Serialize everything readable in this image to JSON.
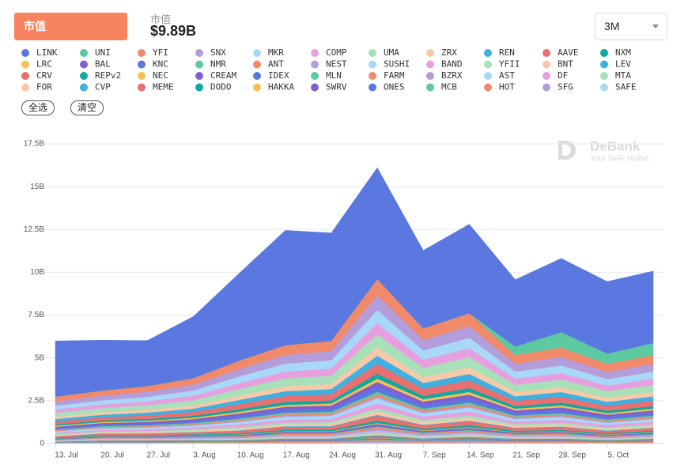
{
  "header": {
    "tab": "市值",
    "metric_label": "市值",
    "metric_value": "$9.89B",
    "range": "3M",
    "select_all": "全选",
    "clear": "清空",
    "watermark": "DeBank",
    "watermark_sub": "Your DeFi Wallet"
  },
  "chart_data": {
    "type": "stacked_area",
    "categories": [
      "13. Jul",
      "20. Jul",
      "27. Jul",
      "3. Aug",
      "10. Aug",
      "17. Aug",
      "24. Aug",
      "31. Aug",
      "7. Sep",
      "14. Sep",
      "21. Sep",
      "28. Sep",
      "5. Oct",
      null
    ],
    "ylim": [
      0,
      17.5
    ],
    "yticks": [
      0,
      {
        "value": 2.5,
        "label": "2.5B"
      },
      {
        "value": 5,
        "label": "5B"
      },
      {
        "value": 7.5,
        "label": "7.5B"
      },
      {
        "value": 10,
        "label": "10B"
      },
      {
        "value": 12.5,
        "label": "12.5B"
      },
      {
        "value": 15,
        "label": "15B"
      },
      {
        "value": 17.5,
        "label": "17.5B"
      }
    ],
    "grid": true,
    "series": [
      {
        "name": "LINK",
        "color": "#5b78e0",
        "values": [
          3.25,
          2.95,
          2.65,
          3.6,
          5.1,
          6.7,
          6.3,
          6.5,
          4.55,
          5.2,
          3.9,
          4.3,
          4.2,
          4.2
        ]
      },
      {
        "name": "UNI",
        "color": "#5cc9a0",
        "values": [
          0,
          0,
          0,
          0,
          0,
          0,
          0,
          0,
          0,
          0,
          0.5,
          0.9,
          0.6,
          0.7
        ]
      },
      {
        "name": "YFI",
        "color": "#f08a6a",
        "values": [
          0.28,
          0.3,
          0.33,
          0.38,
          0.49,
          0.57,
          0.6,
          0.95,
          0.68,
          0.75,
          0.51,
          0.55,
          0.47,
          0.51
        ]
      },
      {
        "name": "SNX",
        "color": "#b39ddb",
        "values": [
          0.25,
          0.27,
          0.3,
          0.34,
          0.44,
          0.51,
          0.54,
          0.86,
          0.61,
          0.68,
          0.46,
          0.5,
          0.42,
          0.46
        ]
      },
      {
        "name": "MKR",
        "color": "#a8d8f8",
        "values": [
          0.22,
          0.24,
          0.26,
          0.3,
          0.39,
          0.46,
          0.48,
          0.76,
          0.54,
          0.6,
          0.41,
          0.44,
          0.38,
          0.41
        ]
      },
      {
        "name": "COMP",
        "color": "#e6a0e0",
        "values": [
          0.2,
          0.21,
          0.23,
          0.27,
          0.34,
          0.4,
          0.42,
          0.67,
          0.48,
          0.53,
          0.36,
          0.39,
          0.33,
          0.36
        ]
      },
      {
        "name": "UMA",
        "color": "#a8e0b8",
        "values": [
          0.22,
          0.24,
          0.26,
          0.3,
          0.39,
          0.46,
          0.48,
          0.76,
          0.54,
          0.6,
          0.41,
          0.44,
          0.38,
          0.41
        ]
      },
      {
        "name": "ZRX",
        "color": "#f8c8a8",
        "values": [
          0.14,
          0.15,
          0.17,
          0.19,
          0.25,
          0.29,
          0.3,
          0.48,
          0.34,
          0.38,
          0.26,
          0.28,
          0.24,
          0.26
        ]
      },
      {
        "name": "REN",
        "color": "#40b0e0",
        "values": [
          0.14,
          0.15,
          0.17,
          0.19,
          0.25,
          0.29,
          0.3,
          0.48,
          0.34,
          0.38,
          0.26,
          0.28,
          0.24,
          0.26
        ]
      },
      {
        "name": "AAVE",
        "color": "#e87070",
        "values": [
          0.17,
          0.18,
          0.2,
          0.23,
          0.29,
          0.34,
          0.36,
          0.57,
          0.41,
          0.45,
          0.31,
          0.33,
          0.28,
          0.31
        ]
      },
      {
        "name": "NXM",
        "color": "#10a8a0",
        "values": [
          0.08,
          0.09,
          0.1,
          0.11,
          0.15,
          0.17,
          0.18,
          0.29,
          0.2,
          0.23,
          0.15,
          0.17,
          0.14,
          0.15
        ]
      },
      {
        "name": "LRC",
        "color": "#f8c050",
        "values": [
          0.06,
          0.06,
          0.07,
          0.08,
          0.1,
          0.11,
          0.12,
          0.19,
          0.14,
          0.15,
          0.1,
          0.11,
          0.09,
          0.1
        ]
      },
      {
        "name": "BAL",
        "color": "#8060d0",
        "values": [
          0.08,
          0.09,
          0.1,
          0.11,
          0.15,
          0.17,
          0.18,
          0.29,
          0.2,
          0.23,
          0.15,
          0.17,
          0.14,
          0.15
        ]
      },
      {
        "name": "KNC",
        "color": "#5b78e0",
        "values": [
          0.08,
          0.09,
          0.1,
          0.11,
          0.15,
          0.17,
          0.18,
          0.29,
          0.2,
          0.23,
          0.15,
          0.17,
          0.14,
          0.15
        ]
      },
      {
        "name": "NMR",
        "color": "#5cc9a0",
        "values": [
          0.04,
          0.05,
          0.05,
          0.06,
          0.07,
          0.09,
          0.09,
          0.14,
          0.1,
          0.11,
          0.08,
          0.08,
          0.07,
          0.08
        ]
      },
      {
        "name": "ANT",
        "color": "#f08a6a",
        "values": [
          0.04,
          0.05,
          0.05,
          0.06,
          0.07,
          0.09,
          0.09,
          0.14,
          0.1,
          0.11,
          0.08,
          0.08,
          0.07,
          0.08
        ]
      },
      {
        "name": "NEST",
        "color": "#b39ddb",
        "values": [
          0.03,
          0.03,
          0.03,
          0.04,
          0.05,
          0.06,
          0.06,
          0.1,
          0.07,
          0.08,
          0.05,
          0.06,
          0.05,
          0.05
        ]
      },
      {
        "name": "SUSHI",
        "color": "#a8d8f8",
        "values": [
          0.08,
          0.09,
          0.1,
          0.11,
          0.15,
          0.17,
          0.18,
          0.29,
          0.2,
          0.23,
          0.15,
          0.17,
          0.14,
          0.15
        ]
      },
      {
        "name": "BAND",
        "color": "#e6a0e0",
        "values": [
          0.08,
          0.09,
          0.1,
          0.11,
          0.15,
          0.17,
          0.18,
          0.29,
          0.2,
          0.23,
          0.15,
          0.17,
          0.14,
          0.15
        ]
      },
      {
        "name": "YFII",
        "color": "#a8e0b8",
        "values": [
          0.06,
          0.06,
          0.07,
          0.08,
          0.1,
          0.11,
          0.12,
          0.19,
          0.14,
          0.15,
          0.1,
          0.11,
          0.09,
          0.1
        ]
      },
      {
        "name": "BNT",
        "color": "#f8c8a8",
        "values": [
          0.06,
          0.06,
          0.07,
          0.08,
          0.1,
          0.11,
          0.12,
          0.19,
          0.14,
          0.15,
          0.1,
          0.11,
          0.09,
          0.1
        ]
      },
      {
        "name": "LEV",
        "color": "#40b0e0",
        "values": [
          0.01,
          0.02,
          0.02,
          0.02,
          0.02,
          0.03,
          0.03,
          0.05,
          0.03,
          0.04,
          0.03,
          0.03,
          0.02,
          0.03
        ]
      },
      {
        "name": "CRV",
        "color": "#e87070",
        "values": [
          0.08,
          0.09,
          0.1,
          0.11,
          0.15,
          0.17,
          0.18,
          0.29,
          0.2,
          0.23,
          0.15,
          0.17,
          0.14,
          0.15
        ]
      },
      {
        "name": "REPv2",
        "color": "#10a8a0",
        "values": [
          0.04,
          0.05,
          0.05,
          0.06,
          0.07,
          0.09,
          0.09,
          0.14,
          0.1,
          0.11,
          0.08,
          0.08,
          0.07,
          0.08
        ]
      },
      {
        "name": "NEC",
        "color": "#f8c050",
        "values": [
          0.01,
          0.02,
          0.02,
          0.02,
          0.02,
          0.03,
          0.03,
          0.05,
          0.03,
          0.04,
          0.03,
          0.03,
          0.02,
          0.03
        ]
      },
      {
        "name": "CREAM",
        "color": "#8060d0",
        "values": [
          0.03,
          0.03,
          0.03,
          0.04,
          0.05,
          0.06,
          0.06,
          0.1,
          0.07,
          0.08,
          0.05,
          0.06,
          0.05,
          0.05
        ]
      },
      {
        "name": "IDEX",
        "color": "#5b78e0",
        "values": [
          0.01,
          0.02,
          0.02,
          0.02,
          0.02,
          0.03,
          0.03,
          0.05,
          0.03,
          0.04,
          0.03,
          0.03,
          0.02,
          0.03
        ]
      },
      {
        "name": "MLN",
        "color": "#5cc9a0",
        "values": [
          0.01,
          0.02,
          0.02,
          0.02,
          0.02,
          0.03,
          0.03,
          0.05,
          0.03,
          0.04,
          0.03,
          0.03,
          0.02,
          0.03
        ]
      },
      {
        "name": "FARM",
        "color": "#f08a6a",
        "values": [
          0.03,
          0.03,
          0.03,
          0.04,
          0.05,
          0.06,
          0.06,
          0.1,
          0.07,
          0.08,
          0.05,
          0.06,
          0.05,
          0.05
        ]
      },
      {
        "name": "BZRX",
        "color": "#b39ddb",
        "values": [
          0.03,
          0.03,
          0.03,
          0.04,
          0.05,
          0.06,
          0.06,
          0.1,
          0.07,
          0.08,
          0.05,
          0.06,
          0.05,
          0.05
        ]
      },
      {
        "name": "AST",
        "color": "#a8d8f8",
        "values": [
          0.01,
          0.02,
          0.02,
          0.02,
          0.02,
          0.03,
          0.03,
          0.05,
          0.03,
          0.04,
          0.03,
          0.03,
          0.02,
          0.03
        ]
      },
      {
        "name": "DF",
        "color": "#e6a0e0",
        "values": [
          0.01,
          0.02,
          0.02,
          0.02,
          0.02,
          0.03,
          0.03,
          0.05,
          0.03,
          0.04,
          0.03,
          0.03,
          0.02,
          0.03
        ]
      },
      {
        "name": "MTA",
        "color": "#a8e0b8",
        "values": [
          0.03,
          0.03,
          0.03,
          0.04,
          0.05,
          0.06,
          0.06,
          0.1,
          0.07,
          0.08,
          0.05,
          0.06,
          0.05,
          0.05
        ]
      },
      {
        "name": "FOR",
        "color": "#f8c8a8",
        "values": [
          0.01,
          0.02,
          0.02,
          0.02,
          0.02,
          0.03,
          0.03,
          0.05,
          0.03,
          0.04,
          0.03,
          0.03,
          0.02,
          0.03
        ]
      },
      {
        "name": "CVP",
        "color": "#40b0e0",
        "values": [
          0.01,
          0.02,
          0.02,
          0.02,
          0.02,
          0.03,
          0.03,
          0.05,
          0.03,
          0.04,
          0.03,
          0.03,
          0.02,
          0.03
        ]
      },
      {
        "name": "MEME",
        "color": "#e87070",
        "values": [
          0.01,
          0.02,
          0.02,
          0.02,
          0.02,
          0.03,
          0.03,
          0.05,
          0.03,
          0.04,
          0.03,
          0.03,
          0.02,
          0.03
        ]
      },
      {
        "name": "DODO",
        "color": "#10a8a0",
        "values": [
          0.01,
          0.02,
          0.02,
          0.02,
          0.02,
          0.03,
          0.03,
          0.05,
          0.03,
          0.04,
          0.03,
          0.03,
          0.02,
          0.03
        ]
      },
      {
        "name": "HAKKA",
        "color": "#f8c050",
        "values": [
          0.01,
          0.01,
          0.01,
          0.01,
          0.01,
          0.02,
          0.02,
          0.03,
          0.02,
          0.02,
          0.02,
          0.02,
          0.01,
          0.02
        ]
      },
      {
        "name": "SWRV",
        "color": "#8060d0",
        "values": [
          0.01,
          0.02,
          0.02,
          0.02,
          0.02,
          0.03,
          0.03,
          0.05,
          0.03,
          0.04,
          0.03,
          0.03,
          0.02,
          0.03
        ]
      },
      {
        "name": "ONES",
        "color": "#5b78e0",
        "values": [
          0.01,
          0.01,
          0.01,
          0.01,
          0.01,
          0.01,
          0.01,
          0.02,
          0.01,
          0.02,
          0.01,
          0.01,
          0.01,
          0.01
        ]
      },
      {
        "name": "MCB",
        "color": "#5cc9a0",
        "values": [
          0.01,
          0.02,
          0.02,
          0.02,
          0.02,
          0.03,
          0.03,
          0.05,
          0.03,
          0.04,
          0.03,
          0.03,
          0.02,
          0.03
        ]
      },
      {
        "name": "HOT",
        "color": "#f08a6a",
        "values": [
          0.03,
          0.03,
          0.03,
          0.04,
          0.05,
          0.06,
          0.06,
          0.1,
          0.07,
          0.08,
          0.05,
          0.06,
          0.05,
          0.05
        ]
      },
      {
        "name": "SFG",
        "color": "#b39ddb",
        "values": [
          0.01,
          0.02,
          0.02,
          0.02,
          0.02,
          0.03,
          0.03,
          0.05,
          0.03,
          0.04,
          0.03,
          0.03,
          0.02,
          0.03
        ]
      },
      {
        "name": "SAFE",
        "color": "#a8d8f8",
        "values": [
          0.01,
          0.02,
          0.02,
          0.02,
          0.02,
          0.03,
          0.03,
          0.05,
          0.03,
          0.04,
          0.03,
          0.03,
          0.02,
          0.03
        ]
      }
    ]
  }
}
